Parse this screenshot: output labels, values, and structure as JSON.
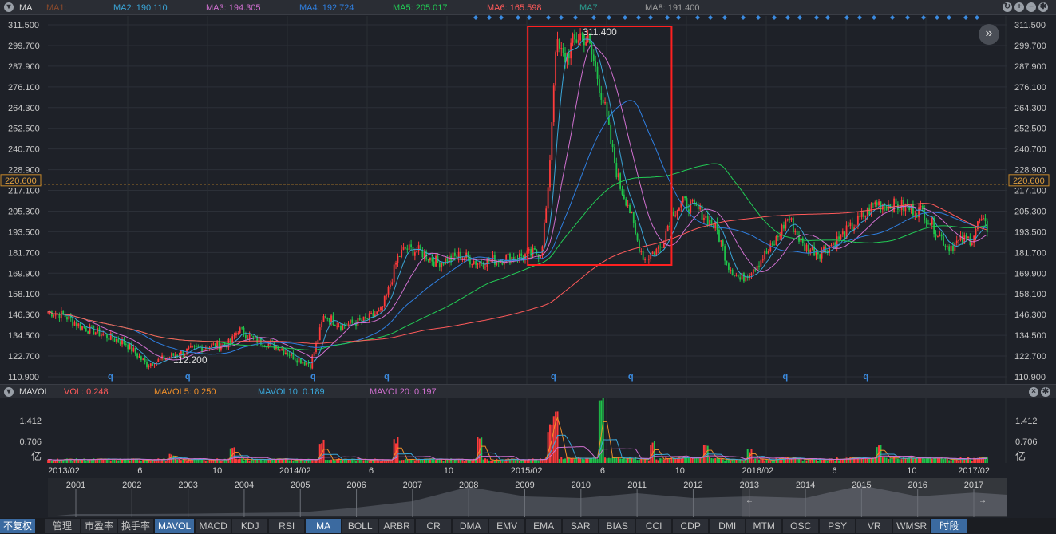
{
  "top_bar": {
    "indicator": "MA",
    "legend": [
      {
        "label": "MA1:",
        "value": "",
        "color": "#8b4a2b"
      },
      {
        "label": "MA2:",
        "value": "190.110",
        "color": "#3aa6d8"
      },
      {
        "label": "MA3:",
        "value": "194.305",
        "color": "#d070d0"
      },
      {
        "label": "MA4:",
        "value": "192.724",
        "color": "#2f7fe0"
      },
      {
        "label": "MA5:",
        "value": "205.017",
        "color": "#22cc55"
      },
      {
        "label": "MA6:",
        "value": "165.598",
        "color": "#ff5a5a"
      },
      {
        "label": "MA7:",
        "value": "",
        "color": "#2a9d8f"
      },
      {
        "label": "MA8:",
        "value": "191.400",
        "color": "#a0a0a0"
      }
    ],
    "icons": [
      "refresh-icon",
      "zoom-in-icon",
      "zoom-out-icon",
      "gear-icon"
    ]
  },
  "vol_bar": {
    "indicator": "MAVOL",
    "legend": [
      {
        "label": "VOL:",
        "value": "0.248",
        "color": "#ff5a5a"
      },
      {
        "label": "MAVOL5:",
        "value": "0.250",
        "color": "#f0902a"
      },
      {
        "label": "MAVOL10:",
        "value": "0.189",
        "color": "#3aa6d8"
      },
      {
        "label": "MAVOL20:",
        "value": "0.197",
        "color": "#d070d0"
      }
    ],
    "icons": [
      "close-icon",
      "gear-icon"
    ]
  },
  "chart_data": {
    "type": "candlestick",
    "y_ticks": [
      "311.500",
      "299.700",
      "287.900",
      "276.100",
      "264.300",
      "252.500",
      "240.700",
      "228.900",
      "217.100",
      "205.300",
      "193.500",
      "181.700",
      "169.900",
      "158.100",
      "146.300",
      "134.500",
      "122.700",
      "110.900"
    ],
    "ylim": [
      110.9,
      311.5
    ],
    "current_price": "220.600",
    "high_label": "311.400",
    "low_label": "112.200",
    "x_ticks": [
      [
        "2013-02-01",
        "2013/02"
      ],
      [
        "2013-06-01",
        "6"
      ],
      [
        "2013-10-01",
        "10"
      ],
      [
        "2014-02-01",
        "2014/02"
      ],
      [
        "2014-06-01",
        "6"
      ],
      [
        "2014-10-01",
        "10"
      ],
      [
        "2015-02-01",
        "2015/02"
      ],
      [
        "2015-06-01",
        "6"
      ],
      [
        "2015-10-01",
        "10"
      ],
      [
        "2016-02-01",
        "2016/02"
      ],
      [
        "2016-06-01",
        "6"
      ],
      [
        "2016-10-01",
        "10"
      ],
      [
        "2017-02-01",
        "2017/02"
      ]
    ],
    "xlim": [
      "2013-02-01",
      "2017-02-01"
    ],
    "close_keypoints": [
      [
        "2013-01-07",
        148
      ],
      [
        "2013-02-01",
        146
      ],
      [
        "2013-02-25",
        140
      ],
      [
        "2013-04-03",
        135
      ],
      [
        "2013-05-10",
        130
      ],
      [
        "2013-06-11",
        118
      ],
      [
        "2013-06-30",
        120
      ],
      [
        "2013-08-07",
        125
      ],
      [
        "2013-09-14",
        128
      ],
      [
        "2013-10-22",
        130
      ],
      [
        "2013-11-03",
        138
      ],
      [
        "2013-11-29",
        132
      ],
      [
        "2014-01-06",
        128
      ],
      [
        "2014-01-31",
        122
      ],
      [
        "2014-02-25",
        118
      ],
      [
        "2014-03-07",
        130
      ],
      [
        "2014-03-19",
        146
      ],
      [
        "2014-04-15",
        140
      ],
      [
        "2014-05-22",
        143
      ],
      [
        "2014-06-16",
        148
      ],
      [
        "2014-06-28",
        160
      ],
      [
        "2014-07-12",
        178
      ],
      [
        "2014-07-24",
        184
      ],
      [
        "2014-08-19",
        182
      ],
      [
        "2014-09-13",
        176
      ],
      [
        "2014-10-21",
        180
      ],
      [
        "2014-11-16",
        176
      ],
      [
        "2014-12-22",
        178
      ],
      [
        "2015-01-31",
        180
      ],
      [
        "2015-02-24",
        182
      ],
      [
        "2015-03-07",
        215
      ],
      [
        "2015-03-19",
        300
      ],
      [
        "2015-04-02",
        292
      ],
      [
        "2015-04-14",
        300
      ],
      [
        "2015-04-27",
        306
      ],
      [
        "2015-05-09",
        302
      ],
      [
        "2015-05-22",
        285
      ],
      [
        "2015-06-04",
        265
      ],
      [
        "2015-06-16",
        240
      ],
      [
        "2015-06-28",
        220
      ],
      [
        "2015-07-11",
        210
      ],
      [
        "2015-07-24",
        190
      ],
      [
        "2015-08-06",
        178
      ],
      [
        "2015-09-01",
        185
      ],
      [
        "2015-09-19",
        205
      ],
      [
        "2015-10-07",
        210
      ],
      [
        "2015-11-03",
        205
      ],
      [
        "2015-11-28",
        195
      ],
      [
        "2015-12-16",
        175
      ],
      [
        "2016-01-04",
        166
      ],
      [
        "2016-01-30",
        175
      ],
      [
        "2016-02-24",
        185
      ],
      [
        "2016-03-20",
        202
      ],
      [
        "2016-04-13",
        185
      ],
      [
        "2016-05-09",
        182
      ],
      [
        "2016-06-03",
        188
      ],
      [
        "2016-07-10",
        200
      ],
      [
        "2016-08-05",
        210
      ],
      [
        "2016-09-13",
        208
      ],
      [
        "2016-10-19",
        205
      ],
      [
        "2016-11-07",
        195
      ],
      [
        "2016-11-27",
        185
      ],
      [
        "2017-01-04",
        190
      ],
      [
        "2017-01-16",
        200
      ],
      [
        "2017-01-29",
        195
      ]
    ],
    "vol_ticks": [
      "1.412",
      "0.706",
      "亿"
    ],
    "vol_spikes": [
      [
        "2013-07-20",
        0.3
      ],
      [
        "2013-10-25",
        0.6
      ],
      [
        "2014-03-15",
        0.8
      ],
      [
        "2014-07-10",
        0.8
      ],
      [
        "2014-11-20",
        1.0
      ],
      [
        "2015-03-10",
        1.2
      ],
      [
        "2015-03-18",
        1.9
      ],
      [
        "2015-05-30",
        2.4
      ],
      [
        "2015-08-20",
        0.7
      ],
      [
        "2015-11-10",
        0.6
      ],
      [
        "2016-01-20",
        0.45
      ],
      [
        "2016-08-10",
        0.6
      ]
    ],
    "markers": {
      "label": "q",
      "dates": [
        "2013-04-15",
        "2013-08-15",
        "2014-03-01",
        "2014-06-25",
        "2015-03-15",
        "2015-07-15",
        "2016-03-15",
        "2016-07-20"
      ]
    },
    "overview": {
      "years": [
        "2001",
        "2002",
        "2003",
        "2004",
        "2005",
        "2006",
        "2007",
        "2008",
        "2009",
        "2010",
        "2011",
        "2012",
        "2013",
        "2014",
        "2015",
        "2016",
        "2017"
      ],
      "levels": [
        0.05,
        0.05,
        0.06,
        0.08,
        0.1,
        0.25,
        0.45,
        0.9,
        0.6,
        0.55,
        0.7,
        0.55,
        0.6,
        0.55,
        0.95,
        0.6,
        0.72
      ]
    },
    "colors": {
      "up": "#ff3b3b",
      "down": "#1fc24a",
      "box": "#ff2020",
      "price_line": "#c8892a"
    }
  },
  "tabs": [
    {
      "label": "不复权",
      "on": true
    },
    {
      "label": "管理"
    },
    {
      "label": "市盈率"
    },
    {
      "label": "换手率"
    },
    {
      "label": "MAVOL",
      "on": true
    },
    {
      "label": "MACD"
    },
    {
      "label": "KDJ"
    },
    {
      "label": "RSI"
    },
    {
      "label": "MA",
      "on": true
    },
    {
      "label": "BOLL"
    },
    {
      "label": "ARBR"
    },
    {
      "label": "CR"
    },
    {
      "label": "DMA"
    },
    {
      "label": "EMV"
    },
    {
      "label": "EMA"
    },
    {
      "label": "SAR"
    },
    {
      "label": "BIAS"
    },
    {
      "label": "CCI"
    },
    {
      "label": "CDP"
    },
    {
      "label": "DMI"
    },
    {
      "label": "MTM"
    },
    {
      "label": "OSC"
    },
    {
      "label": "PSY"
    },
    {
      "label": "VR"
    },
    {
      "label": "WMSR"
    },
    {
      "label": "时段",
      "on": true
    }
  ]
}
